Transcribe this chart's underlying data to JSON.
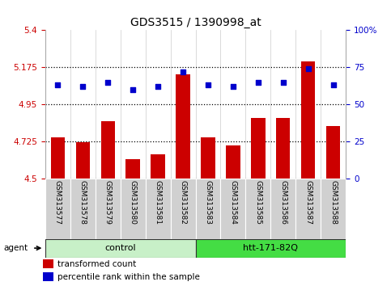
{
  "title": "GDS3515 / 1390998_at",
  "samples": [
    "GSM313577",
    "GSM313578",
    "GSM313579",
    "GSM313580",
    "GSM313581",
    "GSM313582",
    "GSM313583",
    "GSM313584",
    "GSM313585",
    "GSM313586",
    "GSM313587",
    "GSM313588"
  ],
  "transformed_count": [
    4.75,
    4.72,
    4.85,
    4.62,
    4.65,
    5.13,
    4.75,
    4.7,
    4.87,
    4.87,
    5.21,
    4.82
  ],
  "percentile_rank": [
    63,
    62,
    65,
    60,
    62,
    72,
    63,
    62,
    65,
    65,
    74,
    63
  ],
  "ylim_left": [
    4.5,
    5.4
  ],
  "ylim_right": [
    0,
    100
  ],
  "yticks_left": [
    4.5,
    4.725,
    4.95,
    5.175,
    5.4
  ],
  "yticks_right": [
    0,
    25,
    50,
    75,
    100
  ],
  "hlines": [
    4.725,
    4.95,
    5.175
  ],
  "bar_color": "#cc0000",
  "dot_color": "#0000cc",
  "bar_width": 0.55,
  "control_color": "#c8f0c8",
  "htt_color": "#44dd44",
  "label_bg": "#d0d0d0",
  "group_border": "#000000",
  "left_axis_color": "#cc0000",
  "right_axis_color": "#0000cc",
  "legend_red": "#cc0000",
  "legend_blue": "#0000cc"
}
